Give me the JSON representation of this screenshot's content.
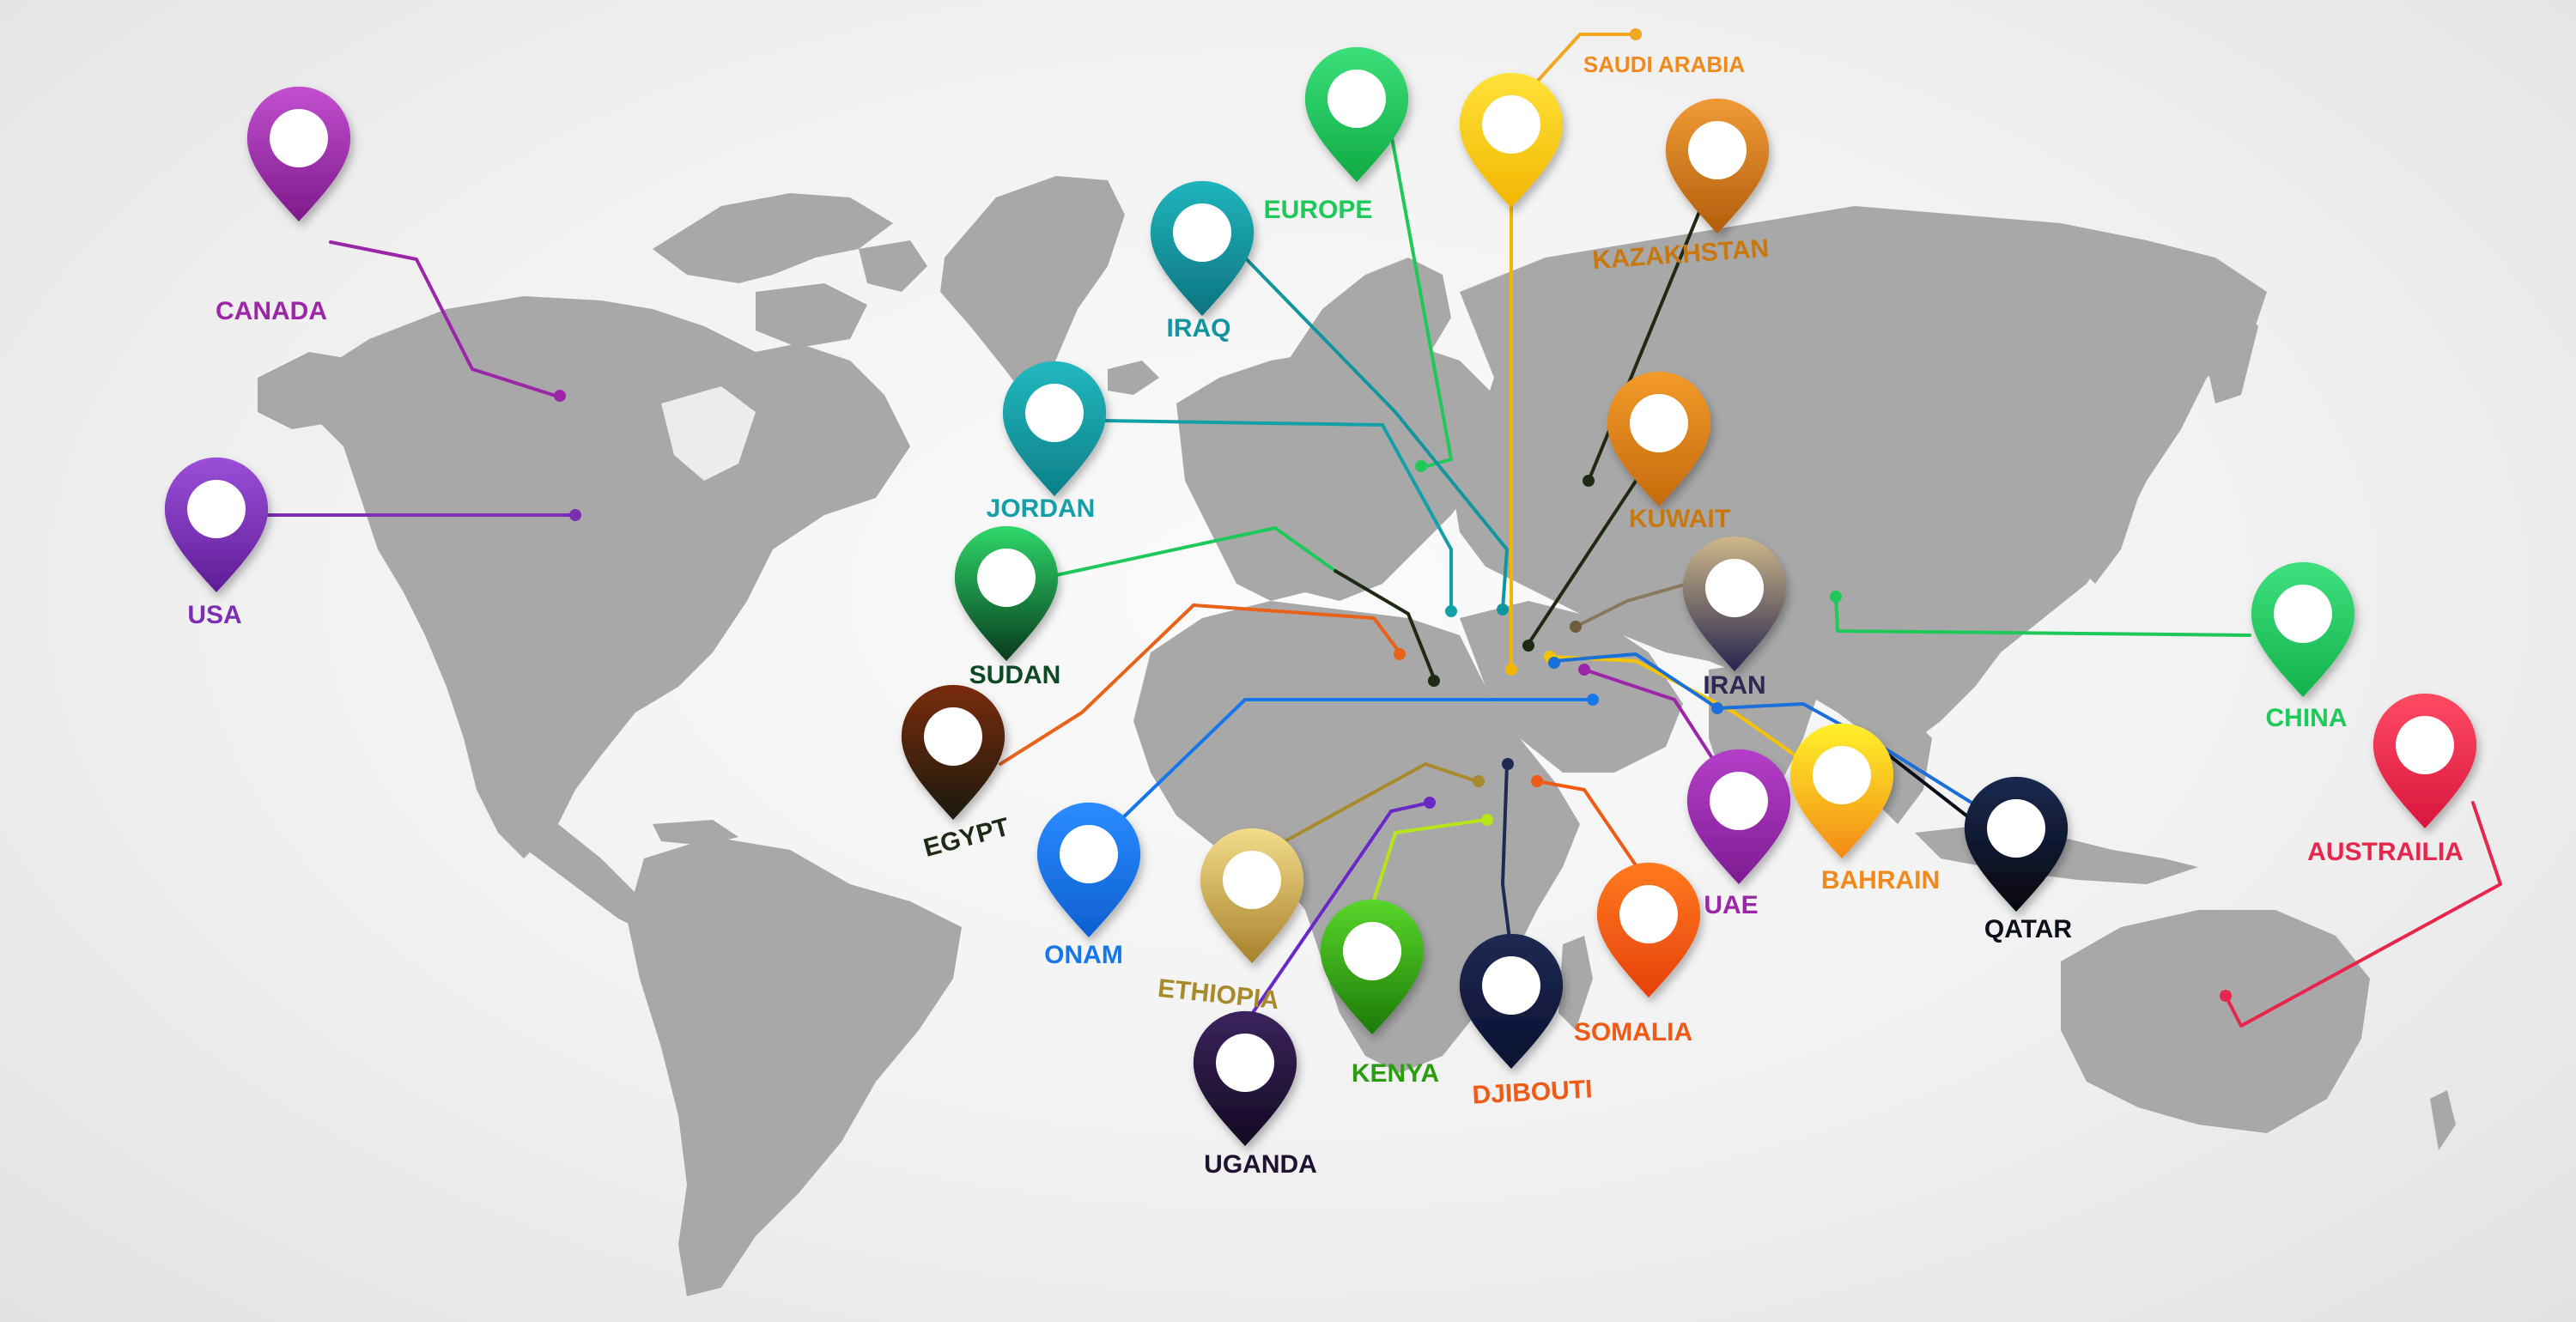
{
  "markers": [
    {
      "id": "canada",
      "label": "CANADA",
      "color": "#9b27a8"
    },
    {
      "id": "usa",
      "label": "USA",
      "color": "#7b2fb0"
    },
    {
      "id": "europe",
      "label": "EUROPE",
      "color": "#1ec95a"
    },
    {
      "id": "saudi-arabia",
      "label": "SAUDI ARABIA",
      "color": "#f08a1c"
    },
    {
      "id": "iraq",
      "label": "IRAQ",
      "color": "#12959e"
    },
    {
      "id": "kazakhstan",
      "label": "KAZAKHSTAN",
      "color": "#cf7516"
    },
    {
      "id": "jordan",
      "label": "JORDAN",
      "color": "#14a0a8"
    },
    {
      "id": "kuwait",
      "label": "KUWAIT",
      "color": "#c8780f"
    },
    {
      "id": "sudan",
      "label": "SUDAN",
      "color": "#0c4a26"
    },
    {
      "id": "iran",
      "label": "IRAN",
      "color": "#2c2a52"
    },
    {
      "id": "egypt",
      "label": "EGYPT",
      "color": "#1e2a14"
    },
    {
      "id": "onam",
      "label": "ONAM",
      "color": "#1677e8"
    },
    {
      "id": "ethiopia",
      "label": "ETHIOPIA",
      "color": "#a88a2c"
    },
    {
      "id": "kenya",
      "label": "KENYA",
      "color": "#2a9e0e"
    },
    {
      "id": "djibouti",
      "label": "DJIBOUTI",
      "color": "#ef5a14"
    },
    {
      "id": "somalia",
      "label": "SOMALIA",
      "color": "#ef5a14"
    },
    {
      "id": "uae",
      "label": "UAE",
      "color": "#9b27a8"
    },
    {
      "id": "bahrain",
      "label": "BAHRAIN",
      "color": "#f08a1c"
    },
    {
      "id": "qatar",
      "label": "QATAR",
      "color": "#0b0f1c"
    },
    {
      "id": "china",
      "label": "CHINA",
      "color": "#1ec95a"
    },
    {
      "id": "australia",
      "label": "AUSTRAILIA",
      "color": "#e8264c"
    },
    {
      "id": "uganda",
      "label": "UGANDA",
      "color": "#1e1230"
    }
  ]
}
